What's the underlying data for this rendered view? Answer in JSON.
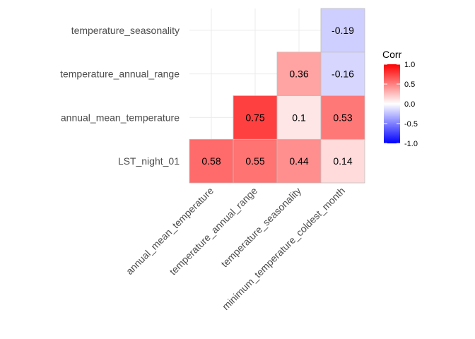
{
  "chart_data": {
    "type": "heatmap",
    "title": "",
    "xlabel": "",
    "ylabel": "",
    "x_categories": [
      "annual_mean_temperature",
      "temperature_annual_range",
      "temperature_seasonality",
      "minimum_temperature_coldest_month"
    ],
    "y_categories": [
      "LST_night_01",
      "annual_mean_temperature",
      "temperature_annual_range",
      "temperature_seasonality"
    ],
    "cells": [
      {
        "x": "annual_mean_temperature",
        "y": "LST_night_01",
        "value": 0.58,
        "label": "0.58"
      },
      {
        "x": "temperature_annual_range",
        "y": "LST_night_01",
        "value": 0.55,
        "label": "0.55"
      },
      {
        "x": "temperature_seasonality",
        "y": "LST_night_01",
        "value": 0.44,
        "label": "0.44"
      },
      {
        "x": "minimum_temperature_coldest_month",
        "y": "LST_night_01",
        "value": 0.14,
        "label": "0.14"
      },
      {
        "x": "temperature_annual_range",
        "y": "annual_mean_temperature",
        "value": 0.75,
        "label": "0.75"
      },
      {
        "x": "temperature_seasonality",
        "y": "annual_mean_temperature",
        "value": 0.1,
        "label": "0.1"
      },
      {
        "x": "minimum_temperature_coldest_month",
        "y": "annual_mean_temperature",
        "value": 0.53,
        "label": "0.53"
      },
      {
        "x": "temperature_seasonality",
        "y": "temperature_annual_range",
        "value": 0.36,
        "label": "0.36"
      },
      {
        "x": "minimum_temperature_coldest_month",
        "y": "temperature_annual_range",
        "value": -0.16,
        "label": "-0.16"
      },
      {
        "x": "minimum_temperature_coldest_month",
        "y": "temperature_seasonality",
        "value": -0.19,
        "label": "-0.19"
      }
    ],
    "legend": {
      "title": "Corr",
      "position": "right",
      "limits": [
        -1.0,
        1.0
      ],
      "ticks": [
        "1.0",
        "0.5",
        "0.0",
        "-0.5",
        "-1.0"
      ],
      "tick_values": [
        1.0,
        0.5,
        0.0,
        -0.5,
        -1.0
      ],
      "low_color": "#0000ff",
      "mid_color": "#ffffff",
      "high_color": "#ff0000"
    },
    "grid": true,
    "cell_border_color": "#bebebe"
  }
}
